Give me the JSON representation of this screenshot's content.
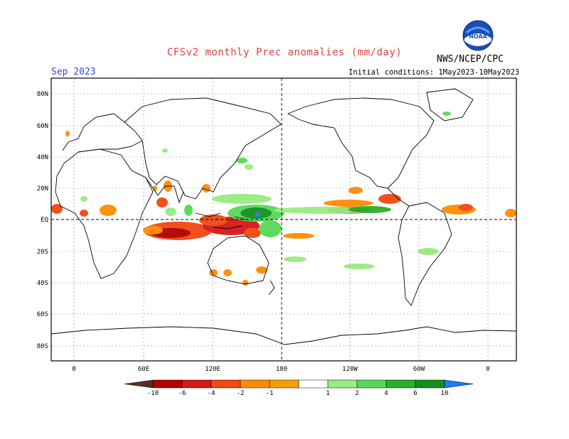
{
  "header": {
    "title": "CFSv2 monthly Prec anomalies (mm/day)",
    "agency": "NWS/NCEP/CPC",
    "month": "Sep 2023",
    "initial_conditions": "Initial conditions: 1May2023-10May2023",
    "logo_text": "NOAA"
  },
  "map": {
    "lat_labels": [
      "80N",
      "60N",
      "40N",
      "20N",
      "EQ",
      "20S",
      "40S",
      "60S",
      "80S"
    ],
    "lon_labels": [
      "0",
      "60E",
      "120E",
      "180",
      "120W",
      "60W",
      "0"
    ]
  },
  "legend": {
    "labels": [
      "-10",
      "-6",
      "-4",
      "-2",
      "-1",
      "1",
      "2",
      "4",
      "6",
      "10"
    ],
    "colors": [
      "#5a2e1e",
      "#b00000",
      "#d81818",
      "#f04810",
      "#ff8c00",
      "#f3a000",
      "#ffffff",
      "#98ec80",
      "#58d858",
      "#28b028",
      "#12901e",
      "#1e78ff"
    ]
  }
}
